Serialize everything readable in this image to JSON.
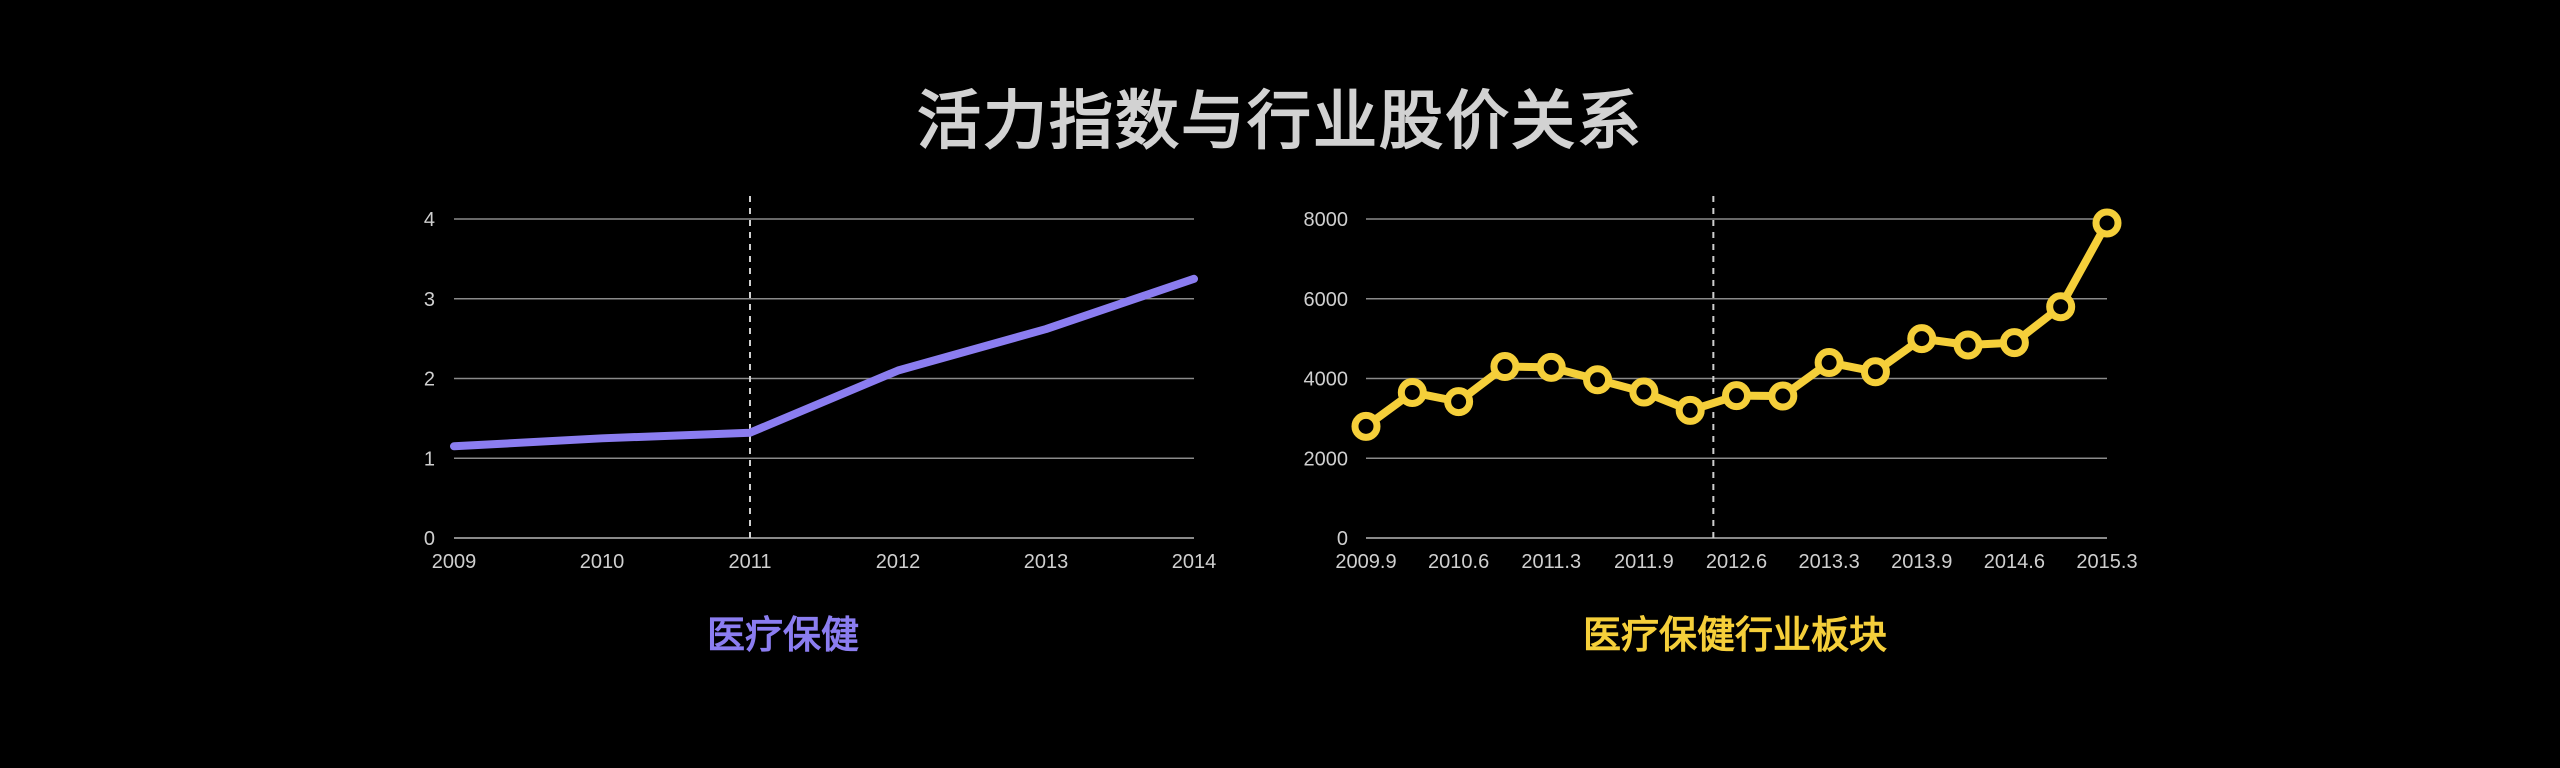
{
  "title": "活力指数与行业股价关系",
  "colors": {
    "left": "#8b7df0",
    "right": "#f5cf3a",
    "grid": "#8a8a8a",
    "text": "#cfcfcf"
  },
  "chart_data": [
    {
      "type": "line",
      "title": "医疗保健",
      "x": [
        2009,
        2010,
        2011,
        2012,
        2013,
        2014
      ],
      "series": [
        {
          "values": [
            1.15,
            1.25,
            1.32,
            2.1,
            2.62,
            3.25
          ]
        }
      ],
      "xlim": [
        2009,
        2014
      ],
      "ylim": [
        0,
        4
      ],
      "yticks": [
        0,
        1,
        2,
        3,
        4
      ],
      "xtick_labels": [
        "2009",
        "2010",
        "2011",
        "2012",
        "2013",
        "2014"
      ],
      "marker_line_x": 2011,
      "grid": true
    },
    {
      "type": "line",
      "title": "医疗保健行业板块",
      "x_labels_shown": [
        "2009.9",
        "2010.6",
        "2011.3",
        "2011.9",
        "2012.6",
        "2013.3",
        "2013.9",
        "2014.6",
        "2015.3"
      ],
      "series": [
        {
          "values": [
            2800,
            3650,
            3420,
            4300,
            4280,
            3970,
            3660,
            3200,
            3570,
            3560,
            4400,
            4170,
            5000,
            4840,
            4900,
            5800,
            7900
          ]
        }
      ],
      "ylim": [
        0,
        8000
      ],
      "yticks": [
        0,
        2000,
        4000,
        6000,
        8000
      ],
      "marker_line_index": 7,
      "markers": true,
      "grid": true
    }
  ]
}
